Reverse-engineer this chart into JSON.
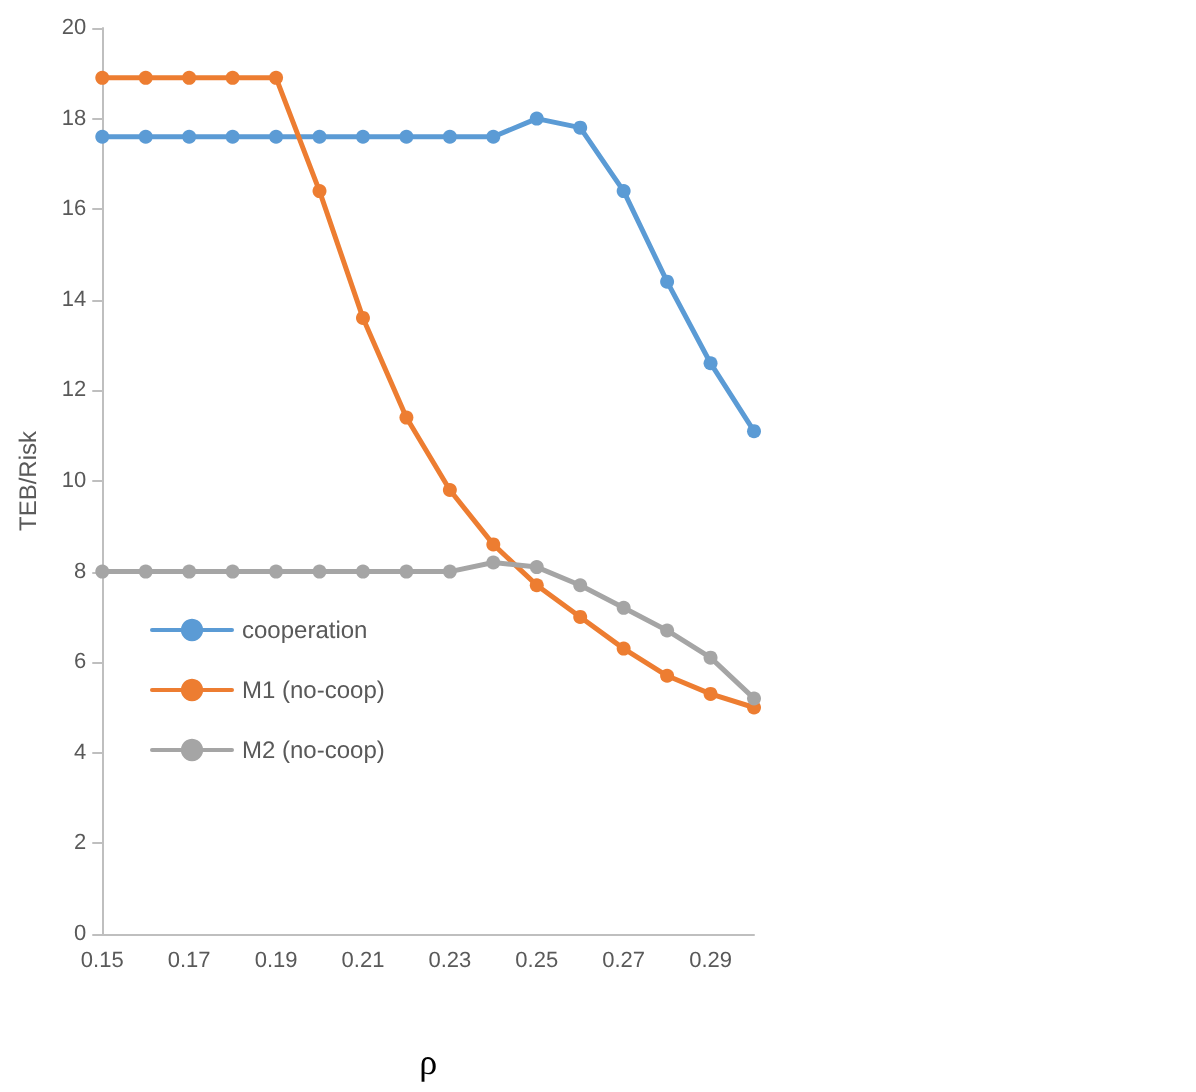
{
  "chart_data": {
    "type": "line",
    "xlabel": "ρ",
    "ylabel": "TEB/Risk",
    "categories": [
      "0.15",
      null,
      "0.17",
      null,
      "0.19",
      null,
      "0.21",
      null,
      "0.23",
      null,
      "0.25",
      null,
      "0.27",
      null,
      "0.29",
      null
    ],
    "series": [
      {
        "name": "cooperation",
        "color": "#5b9bd5",
        "values": [
          17.6,
          17.6,
          17.6,
          17.6,
          17.6,
          17.6,
          17.6,
          17.6,
          17.6,
          17.6,
          18.0,
          17.8,
          16.4,
          14.4,
          12.6,
          11.1
        ]
      },
      {
        "name": "M1 (no-coop)",
        "color": "#ed7d31",
        "values": [
          18.9,
          18.9,
          18.9,
          18.9,
          18.9,
          16.4,
          13.6,
          11.4,
          9.8,
          8.6,
          7.7,
          7.0,
          6.3,
          5.7,
          5.3,
          5.0
        ]
      },
      {
        "name": "M2 (no-coop)",
        "color": "#a5a5a5",
        "values": [
          8.0,
          8.0,
          8.0,
          8.0,
          8.0,
          8.0,
          8.0,
          8.0,
          8.0,
          8.2,
          8.1,
          7.7,
          7.2,
          6.7,
          6.1,
          5.2
        ]
      }
    ],
    "ylim": [
      0,
      20
    ],
    "yticks": [
      0,
      2,
      4,
      6,
      8,
      10,
      12,
      14,
      16,
      18,
      20
    ],
    "grid": false,
    "legend": "bottom left",
    "marker": "circle",
    "line_style": "solid"
  }
}
